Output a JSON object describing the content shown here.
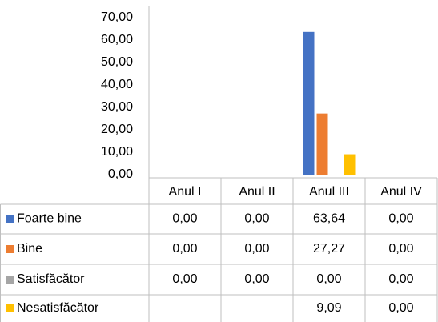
{
  "chart_data": {
    "type": "bar",
    "categories": [
      "Anul I",
      "Anul II",
      "Anul III",
      "Anul IV"
    ],
    "series": [
      {
        "name": "Foarte bine",
        "color": "#4472c4",
        "values": [
          0,
          0,
          63.64,
          0
        ],
        "value_labels": [
          "0,00",
          "0,00",
          "63,64",
          "0,00"
        ]
      },
      {
        "name": "Bine",
        "color": "#ed7d31",
        "values": [
          0,
          0,
          27.27,
          0
        ],
        "value_labels": [
          "0,00",
          "0,00",
          "27,27",
          "0,00"
        ]
      },
      {
        "name": "Satisfăcător",
        "color": "#a5a5a5",
        "values": [
          0,
          0,
          0,
          0
        ],
        "value_labels": [
          "0,00",
          "0,00",
          "0,00",
          "0,00"
        ]
      },
      {
        "name": "Nesatisfăcător",
        "color": "#ffc000",
        "values": [
          null,
          null,
          9.09,
          0
        ],
        "value_labels": [
          null,
          null,
          "9,09",
          "0,00"
        ]
      }
    ],
    "ylim": [
      0,
      70
    ],
    "yticks": [
      {
        "value": 0,
        "label": "0,00"
      },
      {
        "value": 10,
        "label": "10,00"
      },
      {
        "value": 20,
        "label": "20,00"
      },
      {
        "value": 30,
        "label": "30,00"
      },
      {
        "value": 40,
        "label": "40,00"
      },
      {
        "value": 50,
        "label": "50,00"
      },
      {
        "value": 60,
        "label": "60,00"
      },
      {
        "value": 70,
        "label": "70,00"
      }
    ],
    "grid": false
  }
}
